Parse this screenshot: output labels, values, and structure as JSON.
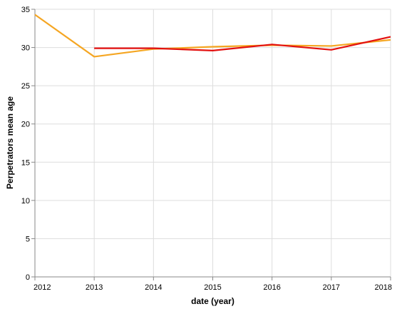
{
  "chart_data": {
    "type": "line",
    "title": "",
    "xlabel": "date (year)",
    "ylabel": "Perpetrators mean age",
    "x_ticks": [
      "2012",
      "2013",
      "2014",
      "2015",
      "2016",
      "2017",
      "2018"
    ],
    "y_ticks": [
      "0",
      "5",
      "10",
      "15",
      "20",
      "25",
      "30",
      "35"
    ],
    "xlim": [
      2012,
      2018
    ],
    "ylim": [
      0,
      35
    ],
    "grid": true,
    "legend": "none",
    "series": [
      {
        "color": "#f5a623",
        "points": [
          {
            "x": 2012,
            "y": 34.3
          },
          {
            "x": 2013,
            "y": 28.8
          },
          {
            "x": 2014,
            "y": 29.8
          },
          {
            "x": 2015,
            "y": 30.1
          },
          {
            "x": 2016,
            "y": 30.3
          },
          {
            "x": 2017,
            "y": 30.2
          },
          {
            "x": 2018,
            "y": 31.0
          }
        ]
      },
      {
        "color": "#e3100f",
        "points": [
          {
            "x": 2013,
            "y": 29.9
          },
          {
            "x": 2014,
            "y": 29.9
          },
          {
            "x": 2015,
            "y": 29.6
          },
          {
            "x": 2016,
            "y": 30.4
          },
          {
            "x": 2017,
            "y": 29.7
          },
          {
            "x": 2018,
            "y": 31.4
          }
        ]
      }
    ]
  }
}
